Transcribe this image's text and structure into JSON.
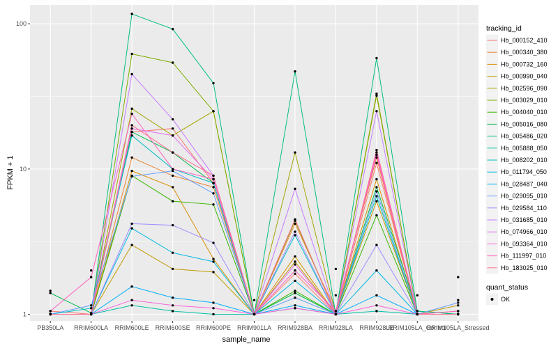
{
  "chart_data": {
    "type": "line",
    "ylabel": "FPKM + 1",
    "xlabel": "sample_name",
    "y_scale": "log10",
    "ylim": [
      0.9,
      135
    ],
    "y_ticks": [
      1,
      10,
      100
    ],
    "y_tick_labels": [
      "1",
      "10",
      "100"
    ],
    "categories": [
      "PB350LA",
      "RRIM600LA",
      "RRIM600LE",
      "RRIM600SE",
      "RRIM600PE",
      "RRIM901LA",
      "RRIM928BA",
      "RRIM928LA",
      "RRIM928LE",
      "RRIM105LA_Control",
      "RRIM105LA_Stressed"
    ],
    "legend_title": "tracking_id",
    "legend_position": "right",
    "series": [
      {
        "name": "Hb_000152_410",
        "color": "#F8766D",
        "values": [
          1.05,
          1.0,
          18.0,
          19.0,
          8.0,
          1.0,
          1.9,
          1.0,
          11.0,
          1.0,
          1.05
        ]
      },
      {
        "name": "Hb_000340_380",
        "color": "#EA8331",
        "values": [
          1.0,
          1.0,
          12.0,
          9.0,
          7.5,
          1.0,
          4.2,
          1.05,
          12.0,
          1.0,
          1.0
        ]
      },
      {
        "name": "Hb_000732_160",
        "color": "#D89000",
        "values": [
          1.0,
          1.0,
          9.7,
          7.5,
          2.4,
          1.0,
          2.5,
          1.0,
          8.5,
          1.0,
          1.0
        ]
      },
      {
        "name": "Hb_000990_040",
        "color": "#C09B00",
        "values": [
          1.0,
          1.0,
          3.0,
          2.05,
          1.95,
          1.0,
          2.3,
          1.0,
          6.0,
          1.0,
          1.15
        ]
      },
      {
        "name": "Hb_002596_090",
        "color": "#A3A500",
        "values": [
          1.0,
          1.0,
          26.0,
          17.0,
          25.0,
          1.0,
          13.0,
          1.0,
          32.0,
          1.0,
          1.0
        ]
      },
      {
        "name": "Hb_003029_010",
        "color": "#7CAE00",
        "values": [
          1.0,
          1.0,
          62.0,
          54.0,
          25.0,
          1.0,
          4.4,
          1.0,
          33.0,
          1.0,
          1.0
        ]
      },
      {
        "name": "Hb_004040_010",
        "color": "#39B600",
        "values": [
          1.0,
          1.0,
          9.0,
          6.0,
          5.7,
          1.0,
          1.45,
          1.0,
          4.8,
          1.0,
          1.0
        ]
      },
      {
        "name": "Hb_005016_080",
        "color": "#00BB4E",
        "values": [
          1.4,
          1.02,
          18.0,
          13.0,
          8.0,
          1.0,
          1.4,
          1.0,
          7.5,
          1.05,
          1.0
        ]
      },
      {
        "name": "Hb_005486_020",
        "color": "#00BF7D",
        "values": [
          1.0,
          1.0,
          117.0,
          92.0,
          39.0,
          1.0,
          47.0,
          1.0,
          58.0,
          1.05,
          1.0
        ]
      },
      {
        "name": "Hb_005888_050",
        "color": "#00C1A3",
        "values": [
          1.0,
          1.0,
          1.15,
          1.05,
          1.0,
          1.0,
          1.1,
          1.0,
          1.05,
          1.0,
          1.0
        ]
      },
      {
        "name": "Hb_008202_010",
        "color": "#00BFC4",
        "values": [
          1.0,
          1.1,
          17.0,
          10.0,
          8.0,
          1.0,
          3.5,
          1.0,
          6.5,
          1.0,
          1.0
        ]
      },
      {
        "name": "Hb_011794_050",
        "color": "#00B9E3",
        "values": [
          1.0,
          1.0,
          3.9,
          2.65,
          2.3,
          1.0,
          1.7,
          1.0,
          2.0,
          1.0,
          1.0
        ]
      },
      {
        "name": "Hb_028487_040",
        "color": "#00ADFA",
        "values": [
          1.0,
          1.0,
          1.55,
          1.3,
          1.2,
          1.0,
          1.15,
          1.0,
          1.35,
          1.0,
          1.0
        ]
      },
      {
        "name": "Hb_029095_010",
        "color": "#619CFF",
        "values": [
          1.0,
          1.15,
          8.9,
          9.7,
          6.8,
          1.0,
          1.3,
          1.0,
          7.0,
          1.0,
          1.2
        ]
      },
      {
        "name": "Hb_029584_110",
        "color": "#9F8CFF",
        "values": [
          1.0,
          1.0,
          4.2,
          4.1,
          3.1,
          1.0,
          3.7,
          1.0,
          3.0,
          1.0,
          1.0
        ]
      },
      {
        "name": "Hb_031685_010",
        "color": "#C77CFF",
        "values": [
          1.0,
          1.0,
          45.0,
          22.0,
          9.0,
          1.0,
          7.3,
          1.0,
          25.0,
          1.0,
          1.0
        ]
      },
      {
        "name": "Hb_074966_010",
        "color": "#E76BF3",
        "values": [
          1.0,
          1.0,
          19.0,
          17.0,
          8.5,
          1.0,
          2.2,
          1.0,
          13.0,
          1.0,
          1.0
        ]
      },
      {
        "name": "Hb_093364_010",
        "color": "#FA62DB",
        "values": [
          1.0,
          1.0,
          1.25,
          1.15,
          1.1,
          1.0,
          1.1,
          1.0,
          1.15,
          1.0,
          1.0
        ]
      },
      {
        "name": "Hb_111997_010",
        "color": "#FF62BC",
        "values": [
          1.05,
          1.8,
          24.0,
          10.0,
          8.5,
          1.0,
          2.0,
          1.05,
          12.5,
          1.0,
          1.05
        ]
      },
      {
        "name": "Hb_183025_010",
        "color": "#FF6C91",
        "values": [
          1.0,
          1.0,
          20.0,
          13.0,
          9.0,
          1.0,
          4.5,
          1.0,
          13.5,
          1.0,
          1.0
        ]
      }
    ],
    "extra_points": {
      "color": "#000000",
      "points": [
        {
          "category": "PB350LA",
          "value": 1.45
        },
        {
          "category": "RRIM600LA",
          "value": 2.0
        },
        {
          "category": "RRIM928LA",
          "value": 2.05
        },
        {
          "category": "RRIM928LA",
          "value": 1.35
        },
        {
          "category": "RRIM901LA",
          "value": 1.25
        },
        {
          "category": "RRIM105LA_Control",
          "value": 1.35
        },
        {
          "category": "RRIM105LA_Stressed",
          "value": 1.8
        },
        {
          "category": "RRIM105LA_Stressed",
          "value": 1.25
        }
      ]
    },
    "shape_legend": {
      "title": "quant_status",
      "items": [
        {
          "label": "OK",
          "color": "#000000"
        }
      ]
    },
    "panel_background": "#EBEBEB",
    "grid": true,
    "grid_color": "#ffffff"
  }
}
